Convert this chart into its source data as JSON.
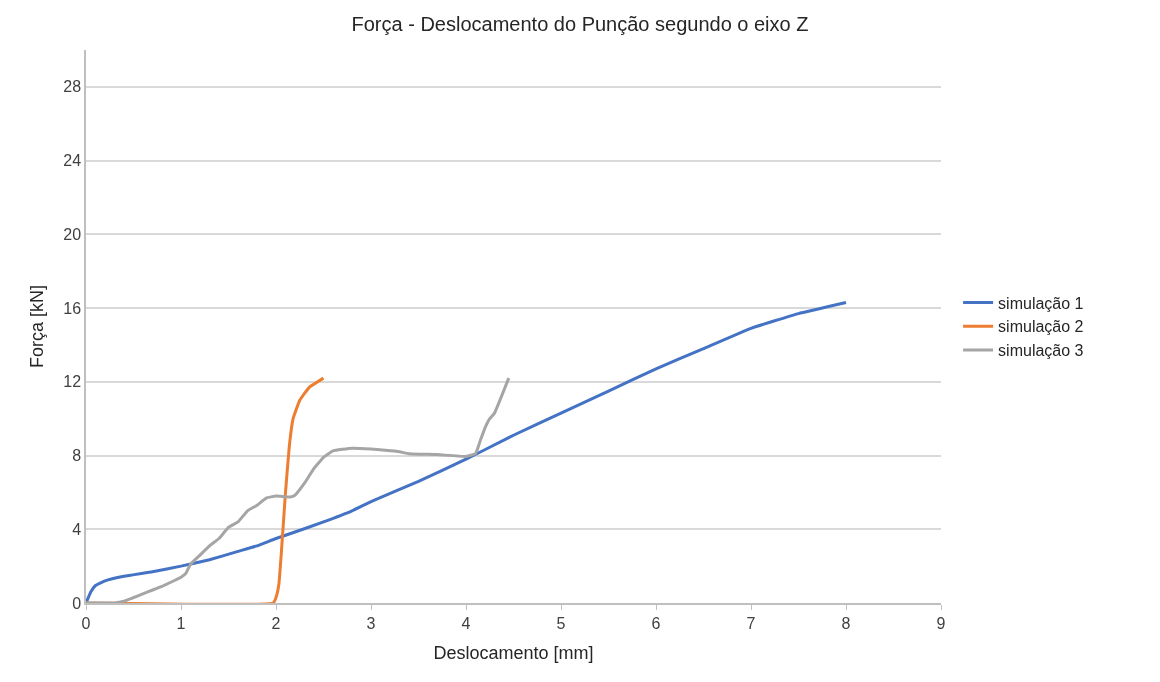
{
  "chart_data": {
    "type": "line",
    "title": "Força - Deslocamento do Punção segundo o eixo Z",
    "xlabel": "Deslocamento [mm]",
    "ylabel": "Força [kN]",
    "xlim": [
      0,
      9
    ],
    "xticks": [
      0,
      1,
      2,
      3,
      4,
      5,
      6,
      7,
      8,
      9
    ],
    "ylim": [
      0,
      30
    ],
    "yticks": [
      0,
      4,
      8,
      12,
      16,
      20,
      24,
      28
    ],
    "grid": "y",
    "legend": "right",
    "marker": "none",
    "line_style": "solid",
    "series": [
      {
        "name": "simulação 1",
        "color": "#4472c4",
        "x": [
          0,
          0.05,
          0.1,
          0.2,
          0.4,
          0.7,
          1,
          1.3,
          1.6,
          1.8,
          2,
          2.2,
          2.5,
          2.8,
          3,
          3.5,
          4,
          4.5,
          5,
          5.5,
          6,
          6.5,
          7,
          7.5,
          8
        ],
        "values": [
          0,
          0.6,
          0.95,
          1.2,
          1.45,
          1.7,
          2.0,
          2.35,
          2.8,
          3.1,
          3.5,
          3.85,
          4.4,
          5.0,
          5.5,
          6.6,
          7.8,
          9.1,
          10.3,
          11.5,
          12.7,
          13.8,
          14.9,
          15.7,
          16.3
        ]
      },
      {
        "name": "simulação 2",
        "color": "#ed7d31",
        "x": [
          0,
          1.97,
          2.0,
          2.03,
          2.06,
          2.1,
          2.14,
          2.18,
          2.25,
          2.35,
          2.5
        ],
        "values": [
          0,
          0,
          0.3,
          1,
          3,
          6,
          8.5,
          10,
          11,
          11.7,
          12.2
        ]
      },
      {
        "name": "simulação 3",
        "color": "#a5a5a5",
        "x": [
          0,
          0.3,
          0.4,
          0.6,
          0.8,
          1.0,
          1.05,
          1.1,
          1.2,
          1.3,
          1.4,
          1.5,
          1.6,
          1.7,
          1.8,
          1.9,
          2.0,
          2.15,
          2.2,
          2.3,
          2.4,
          2.5,
          2.6,
          2.8,
          3.0,
          3.3,
          3.4,
          3.7,
          4.0,
          4.1,
          4.15,
          4.2,
          4.25,
          4.3,
          4.45
        ],
        "values": [
          0,
          0,
          0.1,
          0.5,
          0.9,
          1.4,
          1.6,
          2.1,
          2.6,
          3.1,
          3.5,
          4.1,
          4.4,
          5.0,
          5.3,
          5.7,
          5.8,
          5.75,
          5.85,
          6.5,
          7.3,
          7.9,
          8.25,
          8.4,
          8.35,
          8.2,
          8.1,
          8.05,
          7.95,
          8.1,
          8.8,
          9.5,
          10.0,
          10.3,
          12.2
        ]
      }
    ]
  }
}
